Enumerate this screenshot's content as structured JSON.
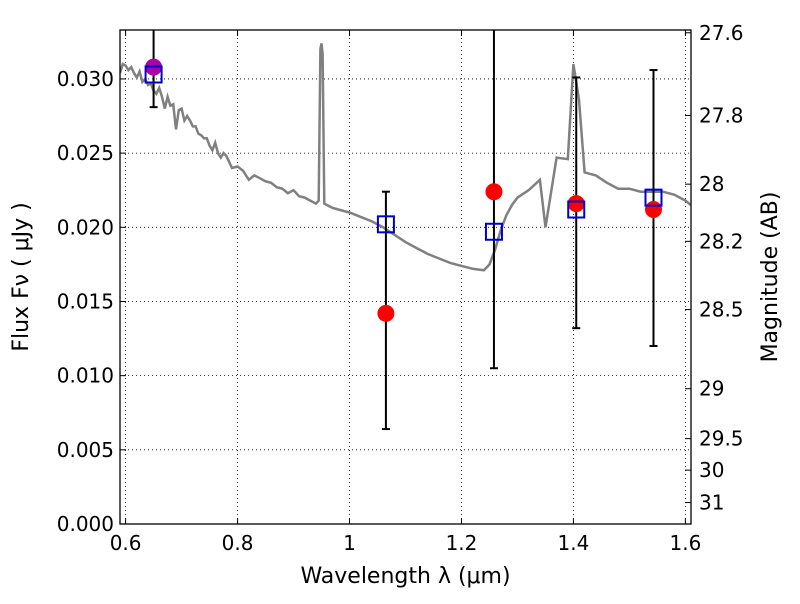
{
  "chart_data": {
    "type": "scatter",
    "xlabel": "Wavelength  λ (μm)",
    "ylabel": "Flux  Fν  ( μJy )",
    "ylabel_right": "Magnitude (AB)",
    "xlim": [
      0.59,
      1.61
    ],
    "ylim": [
      0.0,
      0.0333
    ],
    "grid": true,
    "x_ticks": [
      {
        "value": 0.6,
        "label": "0.6"
      },
      {
        "value": 0.8,
        "label": "0.8"
      },
      {
        "value": 1.0,
        "label": "1"
      },
      {
        "value": 1.2,
        "label": "1.2"
      },
      {
        "value": 1.4,
        "label": "1.4"
      },
      {
        "value": 1.6,
        "label": "1.6"
      }
    ],
    "y_ticks": [
      {
        "value": 0.0,
        "label": "0.000"
      },
      {
        "value": 0.005,
        "label": "0.005"
      },
      {
        "value": 0.01,
        "label": "0.010"
      },
      {
        "value": 0.015,
        "label": "0.015"
      },
      {
        "value": 0.02,
        "label": "0.020"
      },
      {
        "value": 0.025,
        "label": "0.025"
      },
      {
        "value": 0.03,
        "label": "0.030"
      }
    ],
    "right_ticks": [
      {
        "mag": 27.6,
        "label": "27.6"
      },
      {
        "mag": 27.8,
        "label": "27.8"
      },
      {
        "mag": 28.0,
        "label": "28"
      },
      {
        "mag": 28.2,
        "label": "28.2"
      },
      {
        "mag": 28.5,
        "label": "28.5"
      },
      {
        "mag": 29.0,
        "label": "29"
      },
      {
        "mag": 29.5,
        "label": "29.5"
      },
      {
        "mag": 30.0,
        "label": "30"
      },
      {
        "mag": 31.0,
        "label": "31"
      }
    ],
    "model_spectrum": {
      "color": "#808080",
      "x": [
        0.59,
        0.595,
        0.6,
        0.605,
        0.61,
        0.615,
        0.62,
        0.625,
        0.63,
        0.635,
        0.64,
        0.645,
        0.65,
        0.655,
        0.66,
        0.665,
        0.67,
        0.675,
        0.68,
        0.685,
        0.69,
        0.695,
        0.7,
        0.705,
        0.71,
        0.715,
        0.72,
        0.725,
        0.73,
        0.735,
        0.74,
        0.745,
        0.75,
        0.755,
        0.76,
        0.765,
        0.77,
        0.775,
        0.78,
        0.79,
        0.8,
        0.81,
        0.82,
        0.83,
        0.84,
        0.85,
        0.86,
        0.87,
        0.88,
        0.89,
        0.9,
        0.91,
        0.92,
        0.93,
        0.94,
        0.945,
        0.948,
        0.95,
        0.952,
        0.955,
        0.96,
        0.97,
        0.98,
        0.99,
        1.0,
        1.02,
        1.04,
        1.06,
        1.08,
        1.1,
        1.12,
        1.14,
        1.16,
        1.18,
        1.2,
        1.22,
        1.24,
        1.25,
        1.26,
        1.27,
        1.28,
        1.29,
        1.3,
        1.32,
        1.34,
        1.35,
        1.37,
        1.39,
        1.4,
        1.41,
        1.42,
        1.44,
        1.46,
        1.48,
        1.5,
        1.52,
        1.54,
        1.56,
        1.58,
        1.6,
        1.61
      ],
      "y": [
        0.0304,
        0.031,
        0.0309,
        0.0306,
        0.0308,
        0.0304,
        0.0301,
        0.0305,
        0.0298,
        0.03,
        0.0296,
        0.0297,
        0.0292,
        0.029,
        0.0294,
        0.0288,
        0.028,
        0.0288,
        0.0282,
        0.0283,
        0.0266,
        0.0279,
        0.028,
        0.0272,
        0.0275,
        0.0272,
        0.0268,
        0.0268,
        0.0263,
        0.0262,
        0.026,
        0.026,
        0.0255,
        0.0252,
        0.0257,
        0.025,
        0.0247,
        0.025,
        0.0248,
        0.024,
        0.0241,
        0.0238,
        0.0232,
        0.0235,
        0.0233,
        0.0231,
        0.023,
        0.0227,
        0.0226,
        0.0223,
        0.0225,
        0.0221,
        0.022,
        0.0218,
        0.0216,
        0.0218,
        0.032,
        0.0324,
        0.0317,
        0.0216,
        0.0215,
        0.0213,
        0.0212,
        0.0211,
        0.021,
        0.0207,
        0.0204,
        0.02,
        0.0195,
        0.019,
        0.0186,
        0.0182,
        0.0179,
        0.0176,
        0.0174,
        0.0172,
        0.0171,
        0.0175,
        0.0185,
        0.0198,
        0.0208,
        0.0215,
        0.022,
        0.0225,
        0.0232,
        0.02,
        0.0247,
        0.0246,
        0.031,
        0.0286,
        0.0237,
        0.0235,
        0.023,
        0.0226,
        0.0226,
        0.0224,
        0.0224,
        0.0224,
        0.0222,
        0.0218,
        0.0215
      ]
    },
    "series": [
      {
        "marker": "circle",
        "color": "#ff0000",
        "x": [
          1.065,
          1.258,
          1.405,
          1.543
        ],
        "y": [
          0.0142,
          0.0224,
          0.0216,
          0.0212
        ],
        "yerr_low": [
          0.0064,
          0.0105,
          0.0132,
          0.012
        ],
        "yerr_high": [
          0.0224,
          0.034,
          0.0301,
          0.0306
        ]
      },
      {
        "marker": "circle",
        "color": "#aa00aa",
        "x": [
          0.65
        ],
        "y": [
          0.0308
        ],
        "yerr_low": [
          0.0281
        ],
        "yerr_high": [
          0.034
        ]
      },
      {
        "marker": "square",
        "color": "#0000cc",
        "x": [
          0.65,
          1.065,
          1.258,
          1.405,
          1.543
        ],
        "y": [
          0.0303,
          0.0202,
          0.0197,
          0.0212,
          0.022
        ]
      }
    ]
  }
}
